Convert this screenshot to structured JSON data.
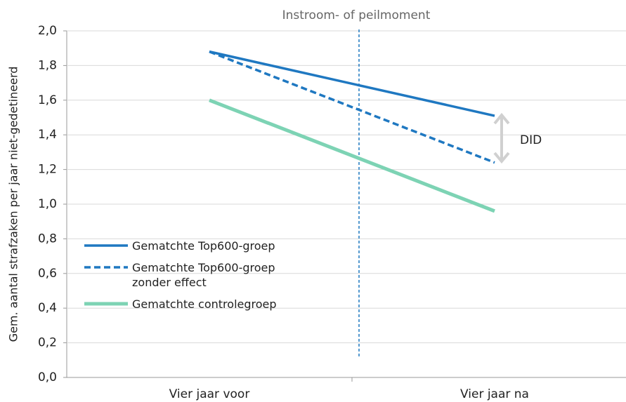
{
  "chart_data": {
    "type": "line",
    "annotation_top": "Instroom- of peilmoment",
    "annotation_did": "DID",
    "y_label": "Gem. aantal strafzaken per jaar niet-gedetineerd",
    "categories": [
      "Vier jaar voor",
      "Vier jaar na"
    ],
    "series": [
      {
        "name": "Gematchte Top600-groep",
        "color": "#1f78c1",
        "dash": false,
        "values": [
          1.88,
          1.51
        ]
      },
      {
        "name": "Gematchte Top600-groep zonder effect",
        "color": "#1f78c1",
        "dash": true,
        "values": [
          1.88,
          1.24
        ]
      },
      {
        "name": "Gematchte controlegroep",
        "color": "#7dd3b4",
        "dash": false,
        "values": [
          1.6,
          0.96
        ]
      }
    ],
    "ylim": [
      0,
      2
    ],
    "yticks": [
      {
        "value": 0,
        "label": "0,0"
      },
      {
        "value": 0.2,
        "label": "0,2"
      },
      {
        "value": 0.4,
        "label": "0,4"
      },
      {
        "value": 0.6,
        "label": "0,6"
      },
      {
        "value": 0.8,
        "label": "0,8"
      },
      {
        "value": 1,
        "label": "1,0"
      },
      {
        "value": 1.2,
        "label": "1,2"
      },
      {
        "value": 1.4,
        "label": "1,4"
      },
      {
        "value": 1.6,
        "label": "1,6"
      },
      {
        "value": 1.8,
        "label": "1,8"
      },
      {
        "value": 2,
        "label": "2,0"
      }
    ],
    "grid": true
  }
}
